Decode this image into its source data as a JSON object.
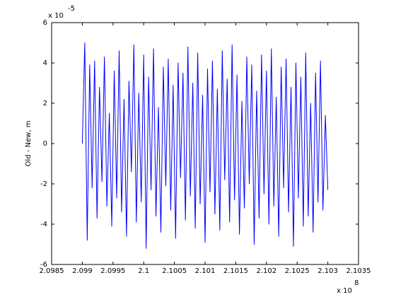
{
  "chart_data": {
    "type": "line",
    "ylabel": "Old - New, m",
    "y_multiplier": {
      "base": "x 10",
      "exponent": "-5"
    },
    "x_multiplier": {
      "base": "x 10",
      "exponent": "8"
    },
    "x": [
      2.099,
      2.09904,
      2.09908,
      2.09912,
      2.09916,
      2.0992,
      2.09924,
      2.09928,
      2.09932,
      2.09936,
      2.0994,
      2.09944,
      2.09948,
      2.09952,
      2.09956,
      2.0996,
      2.09964,
      2.09968,
      2.09972,
      2.09976,
      2.0998,
      2.09984,
      2.09988,
      2.09992,
      2.09996,
      2.1,
      2.10004,
      2.10008,
      2.10012,
      2.10016,
      2.1002,
      2.10024,
      2.10028,
      2.10032,
      2.10036,
      2.1004,
      2.10044,
      2.10048,
      2.10052,
      2.10056,
      2.1006,
      2.10064,
      2.10068,
      2.10072,
      2.10076,
      2.1008,
      2.10084,
      2.10088,
      2.10092,
      2.10096,
      2.101,
      2.10104,
      2.10108,
      2.10112,
      2.10116,
      2.1012,
      2.10124,
      2.10128,
      2.10132,
      2.10136,
      2.1014,
      2.10144,
      2.10148,
      2.10152,
      2.10156,
      2.1016,
      2.10164,
      2.10168,
      2.10172,
      2.10176,
      2.1018,
      2.10184,
      2.10188,
      2.10192,
      2.10196,
      2.102,
      2.10204,
      2.10208,
      2.10212,
      2.10216,
      2.1022,
      2.10224,
      2.10228,
      2.10232,
      2.10236,
      2.1024,
      2.10244,
      2.10248,
      2.10252,
      2.10256,
      2.1026,
      2.10264,
      2.10268,
      2.10272,
      2.10276,
      2.1028,
      2.10284,
      2.10288,
      2.10292,
      2.10296,
      2.103
    ],
    "series": [
      {
        "color": "#0000ff",
        "values": [
          0,
          5,
          -4.8,
          3.9,
          -2.2,
          4.1,
          -3.7,
          2.8,
          -1.9,
          4.3,
          -3.1,
          1.5,
          -4.1,
          3.6,
          -2.7,
          4.6,
          -3.4,
          2.2,
          -4.6,
          3.1,
          -1.4,
          4.9,
          -3.9,
          2.5,
          -2.9,
          4.4,
          -5.2,
          3.3,
          -2.3,
          4.7,
          -3.6,
          1.8,
          -4.4,
          3.8,
          -2.1,
          4.2,
          -3.3,
          2.9,
          -4.7,
          4.0,
          -1.7,
          3.5,
          -3.8,
          4.8,
          -2.6,
          3.0,
          -4.2,
          4.5,
          -3.0,
          2.4,
          -4.9,
          3.7,
          -2.4,
          4.1,
          -3.5,
          2.7,
          -4.3,
          4.6,
          -1.8,
          3.2,
          -3.9,
          4.9,
          -2.8,
          3.4,
          -4.5,
          2.1,
          -3.2,
          4.3,
          -2.0,
          3.9,
          -5.0,
          2.6,
          -3.7,
          4.4,
          -2.5,
          3.6,
          -4.0,
          4.7,
          -3.1,
          2.3,
          -4.6,
          3.8,
          -2.2,
          4.2,
          -3.4,
          2.8,
          -5.1,
          4.0,
          -2.7,
          3.3,
          -4.1,
          4.5,
          -3.6,
          2.0,
          -4.4,
          3.5,
          -2.9,
          4.1,
          -3.3,
          1.4,
          -2.3
        ]
      }
    ],
    "xlim": [
      2.0985,
      2.1035
    ],
    "xticks": [
      2.0985,
      2.099,
      2.0995,
      2.1,
      2.1005,
      2.101,
      2.1015,
      2.102,
      2.1025,
      2.103,
      2.1035
    ],
    "ylim": [
      -6,
      6
    ],
    "yticks": [
      -6,
      -4,
      -2,
      0,
      2,
      4,
      6
    ],
    "grid": false
  }
}
